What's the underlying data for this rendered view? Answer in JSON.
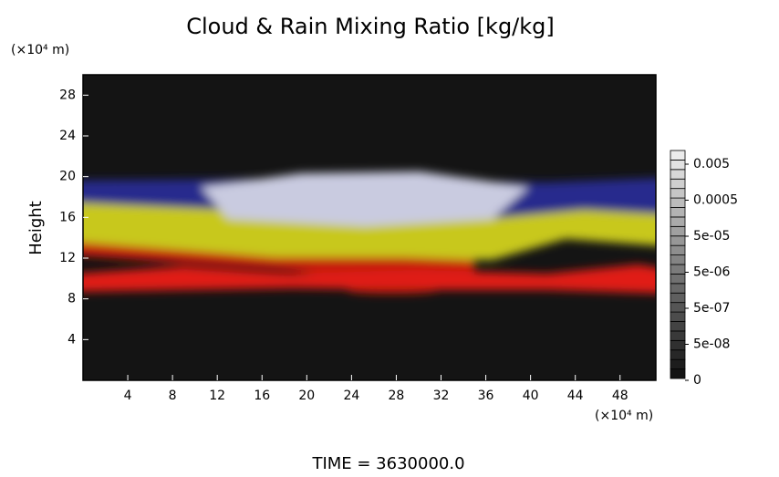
{
  "chart_data": {
    "type": "heatmap",
    "title": "Cloud & Rain Mixing Ratio [kg/kg]",
    "y_unit": "(×10⁴ m)",
    "x_unit": "(×10⁴ m)",
    "ylabel": "Height",
    "annotation": "TIME = 3630000.0",
    "xlim": [
      0,
      51.2
    ],
    "ylim": [
      0,
      30
    ],
    "xticks": [
      4,
      8,
      12,
      16,
      20,
      24,
      28,
      32,
      36,
      40,
      44,
      48
    ],
    "yticks": [
      4,
      8,
      12,
      16,
      20,
      24,
      28
    ],
    "colorbar_ticks": [
      0,
      {
        "value": 5e-08,
        "label": "5e-08"
      },
      {
        "value": 5e-07,
        "label": "5e-07"
      },
      {
        "value": 5e-06,
        "label": "5e-06"
      },
      {
        "value": 5e-05,
        "label": "5e-05"
      },
      0.0005,
      0.005
    ]
  }
}
